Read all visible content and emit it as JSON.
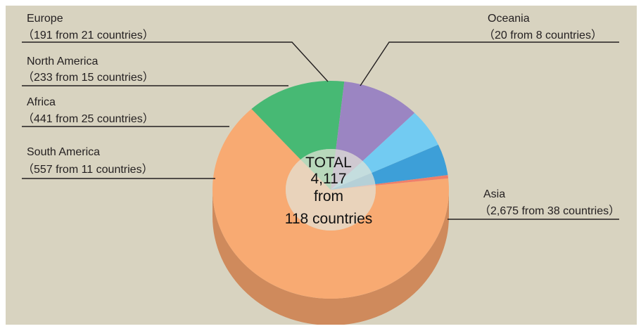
{
  "chart_data": {
    "type": "pie",
    "title": "",
    "center_text": [
      "TOTAL",
      "4,117",
      "from",
      "118 countries"
    ],
    "slices": [
      {
        "name": "Asia",
        "detail": "（2,675 from 38 countries）",
        "value": 2675,
        "color": "#f8aa72",
        "side_color": "#cf8a5c"
      },
      {
        "name": "South America",
        "detail": "（557 from 11 countries）",
        "value": 557,
        "color": "#47b974",
        "side_color": "#35945a"
      },
      {
        "name": "Africa",
        "detail": "（441 from 25 countries）",
        "value": 441,
        "color": "#9b85c2",
        "side_color": "#7b689c"
      },
      {
        "name": "North America",
        "detail": "（233 from 15 countries）",
        "value": 233,
        "color": "#72cbf2",
        "side_color": "#55a0c2"
      },
      {
        "name": "Europe",
        "detail": "（191 from 21 countries）",
        "value": 191,
        "color": "#3d9fd8",
        "side_color": "#2f7eac"
      },
      {
        "name": "Oceania",
        "detail": "（20 from 8 countries）",
        "value": 20,
        "color": "#ef7f6a",
        "side_color": "#c76252"
      }
    ],
    "legend": "leader-line labels"
  }
}
